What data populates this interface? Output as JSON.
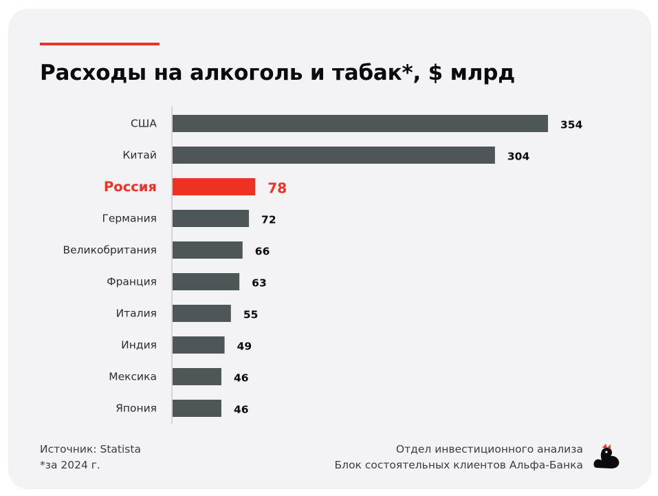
{
  "title": "Расходы на алкоголь и табак*, $ млрд",
  "colors": {
    "accent": "#ef3124",
    "bar": "#4f5658",
    "highlight": "#ef3124",
    "background": "#f3f3f5"
  },
  "chart_data": {
    "type": "bar",
    "orientation": "horizontal",
    "title": "Расходы на алкоголь и табак*, $ млрд",
    "categories": [
      "США",
      "Китай",
      "Россия",
      "Германия",
      "Великобритания",
      "Франция",
      "Италия",
      "Индия",
      "Мексика",
      "Япония"
    ],
    "values": [
      354,
      304,
      78,
      72,
      66,
      63,
      55,
      49,
      46,
      46
    ],
    "highlight_category": "Россия",
    "xlabel": "",
    "ylabel": "",
    "grid": false,
    "legend": "none"
  },
  "footer": {
    "source": "Источник: Statista",
    "note": "*за 2024 г.",
    "dept_line1": "Отдел инвестиционного анализа",
    "dept_line2": "Блок состоятельных клиентов Альфа-Банка",
    "logo_icon": "duck-logo-icon"
  }
}
